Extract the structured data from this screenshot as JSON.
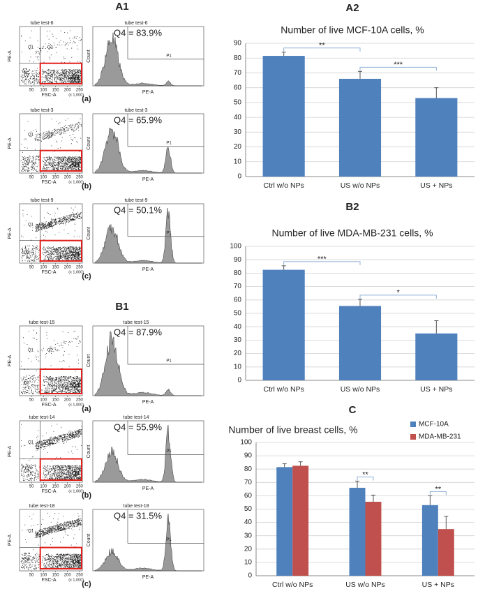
{
  "flow": {
    "common": {
      "scatter_x_label": "FSC-A",
      "scatter_y_label": "PE-A",
      "scatter_x_scale": "(x 1,000)",
      "scatter_x_ticks": [
        50,
        100,
        150,
        200,
        250
      ],
      "quadrants": [
        "Q1",
        "Q2",
        "Q3",
        "Q4"
      ],
      "hist_x_label": "PE-A",
      "hist_y_label": "Count",
      "gate_label": "P1"
    },
    "panels": [
      {
        "label": "A1",
        "rows": [
          {
            "tube": "tube test-6",
            "q4": "Q4 = 83.9%",
            "tag": "(a)"
          },
          {
            "tube": "tube test-3",
            "q4": "Q4 = 65.9%",
            "tag": "(b)"
          },
          {
            "tube": "tube test-9",
            "q4": "Q4 = 50.1%",
            "tag": "(c)"
          }
        ]
      },
      {
        "label": "B1",
        "rows": [
          {
            "tube": "tube test-15",
            "q4": "Q4 = 87.9%",
            "tag": "(a)"
          },
          {
            "tube": "tube test-14",
            "q4": "Q4 = 55.9%",
            "tag": "(b)"
          },
          {
            "tube": "tube test-18",
            "q4": "Q4 = 31.5%",
            "tag": "(c)"
          }
        ]
      }
    ]
  },
  "chart_data": [
    {
      "type": "bar",
      "label": "A2",
      "title": "Number of live MCF-10A cells, %",
      "categories": [
        "Ctrl w/o NPs",
        "US w/o NPs",
        "US + NPs"
      ],
      "values": [
        81.5,
        66,
        53
      ],
      "errors": [
        2.5,
        5,
        7
      ],
      "color": "#4f81bd",
      "ylim": [
        0,
        90
      ],
      "yticks": [
        0,
        10,
        20,
        30,
        40,
        50,
        60,
        70,
        80,
        90
      ],
      "grid": true,
      "annotations": [
        {
          "text": "**",
          "from": "Ctrl w/o NPs",
          "to": "US w/o NPs"
        },
        {
          "text": "***",
          "from": "US w/o NPs",
          "to": "US + NPs"
        }
      ]
    },
    {
      "type": "bar",
      "label": "B2",
      "title": "Number of live MDA-MB-231 cells, %",
      "categories": [
        "Ctrl w/o NPs",
        "US w/o NPs",
        "US + NPs"
      ],
      "values": [
        82.5,
        55.5,
        35
      ],
      "errors": [
        3,
        5,
        9.5
      ],
      "color": "#4f81bd",
      "ylim": [
        0,
        100
      ],
      "yticks": [
        0,
        10,
        20,
        30,
        40,
        50,
        60,
        70,
        80,
        90,
        100
      ],
      "grid": true,
      "annotations": [
        {
          "text": "***",
          "from": "Ctrl w/o NPs",
          "to": "US w/o NPs"
        },
        {
          "text": "*",
          "from": "US w/o NPs",
          "to": "US + NPs"
        }
      ]
    },
    {
      "type": "bar",
      "label": "C",
      "title": "Number of live breast cells, %",
      "categories": [
        "Ctrl w/o NPs",
        "US w/o NPs",
        "US + NPs"
      ],
      "series": [
        {
          "name": "MCF-10A",
          "color": "#4f81bd",
          "values": [
            81.5,
            66,
            53
          ],
          "errors": [
            2.5,
            5,
            7
          ]
        },
        {
          "name": "MDA-MB-231",
          "color": "#c0504d",
          "values": [
            82.5,
            55.5,
            35
          ],
          "errors": [
            3,
            5,
            9.5
          ]
        }
      ],
      "ylim": [
        0,
        100
      ],
      "yticks": [
        0,
        10,
        20,
        30,
        40,
        50,
        60,
        70,
        80,
        90,
        100
      ],
      "grid": true,
      "legend": "top-right",
      "annotations": [
        {
          "text": "**",
          "category": "US w/o NPs"
        },
        {
          "text": "**",
          "category": "US + NPs"
        }
      ]
    }
  ]
}
